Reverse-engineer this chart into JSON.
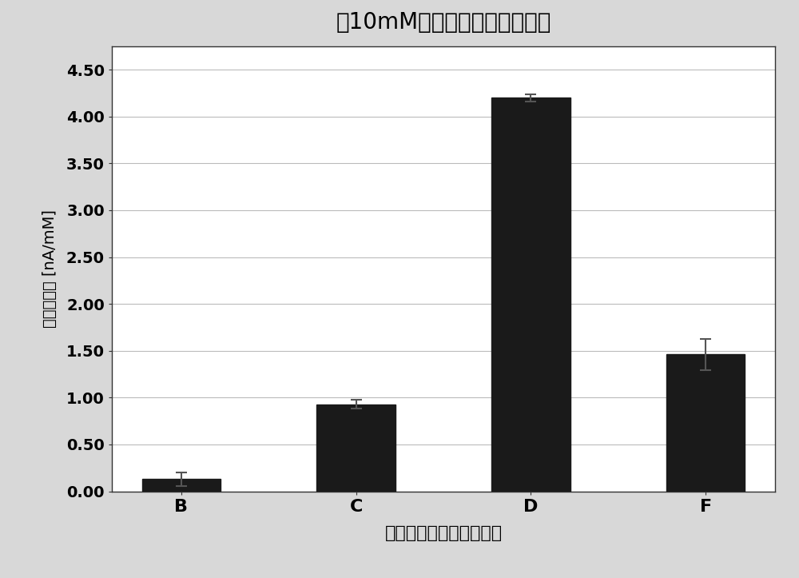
{
  "title": "在10mM葡萄糖下的体外灵敏度",
  "xlabel": "用于扩散层的嵌段共聚物",
  "ylabel": "体外灵敏度 [nA/mM]",
  "categories": [
    "B",
    "C",
    "D",
    "F"
  ],
  "values": [
    0.13,
    0.93,
    4.2,
    1.46
  ],
  "errors": [
    0.07,
    0.05,
    0.04,
    0.17
  ],
  "bar_color": "#1a1a1a",
  "bar_width": 0.45,
  "ylim": [
    0,
    4.75
  ],
  "yticks": [
    0.0,
    0.5,
    1.0,
    1.5,
    2.0,
    2.5,
    3.0,
    3.5,
    4.0,
    4.5
  ],
  "ytick_labels": [
    "0.00",
    "0.50",
    "1.00",
    "1.50",
    "2.00",
    "2.50",
    "3.00",
    "3.50",
    "4.00",
    "4.50"
  ],
  "title_fontsize": 20,
  "xlabel_fontsize": 16,
  "ylabel_fontsize": 14,
  "tick_fontsize": 14,
  "background_color": "#ffffff",
  "plot_bg_color": "#ffffff",
  "outer_bg_color": "#d8d8d8",
  "grid_color": "#bbbbbb",
  "error_capsize": 5,
  "error_color": "#333333"
}
